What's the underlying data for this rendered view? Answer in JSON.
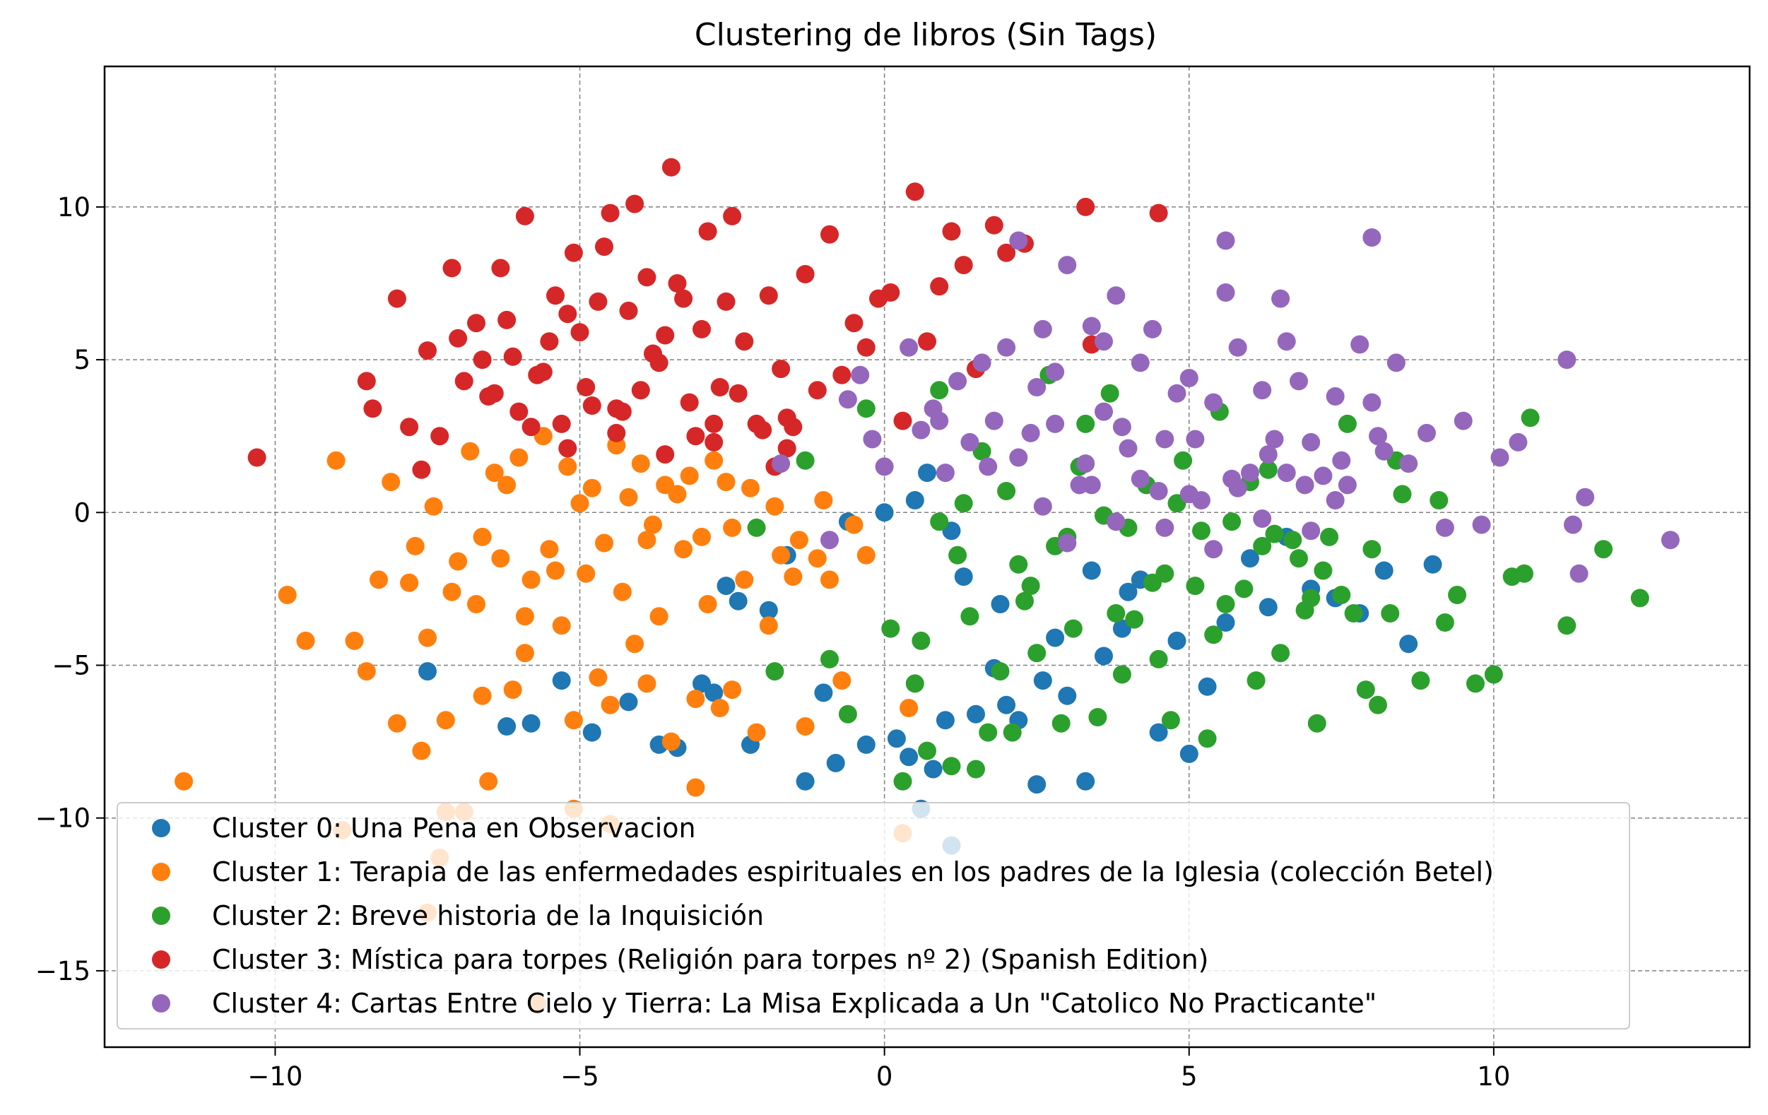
{
  "chart_data": {
    "type": "scatter",
    "title": "Clustering de libros (Sin Tags)",
    "xlabel": "",
    "ylabel": "",
    "xlim": [
      -12.8,
      14.2
    ],
    "ylim": [
      -17.5,
      14.6
    ],
    "xticks": [
      -10,
      -5,
      0,
      5,
      10
    ],
    "yticks": [
      -15,
      -10,
      -5,
      0,
      5,
      10
    ],
    "x_tick_labels": [
      "−10",
      "−5",
      "0",
      "5",
      "10"
    ],
    "y_tick_labels": [
      "−15",
      "−10",
      "−5",
      "0",
      "5",
      "10"
    ],
    "grid": true,
    "legend_position": "lower-left",
    "series": [
      {
        "name": "Cluster 0: Una Pena en Observacion",
        "color": "#1f77b4",
        "x": [
          -7.5,
          -6.2,
          -5.8,
          -5.3,
          -4.8,
          -4.2,
          -3.7,
          -3.4,
          -3.0,
          -2.8,
          -2.6,
          -2.2,
          -1.9,
          -1.6,
          -1.3,
          -1.0,
          -0.8,
          -0.6,
          -0.3,
          0.0,
          0.2,
          0.4,
          0.6,
          0.8,
          1.0,
          1.1,
          1.3,
          1.5,
          1.8,
          2.0,
          2.2,
          2.5,
          2.8,
          3.0,
          3.3,
          3.6,
          3.9,
          4.2,
          4.5,
          4.8,
          5.0,
          5.3,
          5.6,
          6.0,
          6.3,
          6.6,
          7.0,
          7.4,
          7.8,
          8.2,
          8.6,
          9.0,
          0.5,
          1.1,
          -2.4,
          2.6,
          3.4,
          4.0,
          0.7,
          1.9
        ],
        "y": [
          -5.2,
          -7.0,
          -6.9,
          -5.5,
          -7.2,
          -6.2,
          -7.6,
          -7.7,
          -5.6,
          -5.9,
          -2.4,
          -7.6,
          -3.2,
          -1.4,
          -8.8,
          -5.9,
          -8.2,
          -0.3,
          -7.6,
          0.0,
          -7.4,
          -8.0,
          -9.7,
          -8.4,
          -6.8,
          -10.9,
          -2.1,
          -6.6,
          -5.1,
          -6.3,
          -6.8,
          -8.9,
          -4.1,
          -6.0,
          -8.8,
          -4.7,
          -3.8,
          -2.2,
          -7.2,
          -4.2,
          -7.9,
          -5.7,
          -3.6,
          -1.5,
          -3.1,
          -0.8,
          -2.5,
          -2.8,
          -3.3,
          -1.9,
          -4.3,
          -1.7,
          0.4,
          -0.6,
          -2.9,
          -5.5,
          -1.9,
          -2.6,
          1.3,
          -3.0
        ]
      },
      {
        "name": "Cluster 1: Terapia de las enfermedades espirituales en los padres de la Iglesia (colección Betel)",
        "color": "#ff7f0e",
        "x": [
          -11.5,
          -9.8,
          -9.5,
          -9.0,
          -8.7,
          -8.5,
          -8.3,
          -8.0,
          -7.8,
          -7.5,
          -7.3,
          -7.1,
          -6.9,
          -6.7,
          -6.5,
          -6.3,
          -6.1,
          -5.9,
          -5.7,
          -5.5,
          -5.3,
          -5.1,
          -4.9,
          -4.7,
          -4.5,
          -4.3,
          -4.1,
          -3.9,
          -3.7,
          -3.5,
          -3.3,
          -3.1,
          -2.9,
          -2.7,
          -2.5,
          -2.3,
          -2.1,
          -1.9,
          -1.7,
          -1.5,
          -1.3,
          -1.1,
          -0.9,
          -0.7,
          -0.5,
          -0.3,
          0.3,
          -8.1,
          -7.7,
          -7.4,
          -7.0,
          -6.6,
          -6.2,
          -5.8,
          -5.4,
          -5.0,
          -4.6,
          -4.2,
          -3.8,
          -3.4,
          -3.0,
          -2.6,
          -2.2,
          -1.8,
          -1.4,
          -1.0,
          -6.8,
          -6.4,
          -6.0,
          -5.6,
          -5.2,
          -4.8,
          -4.4,
          -4.0,
          -3.6,
          -3.2,
          -2.8,
          -7.6,
          -7.2,
          -6.6,
          -5.9,
          -5.1,
          -4.5,
          -3.9,
          -3.1,
          -2.5,
          0.4,
          -7.5,
          -7.2,
          -8.9
        ],
        "y": [
          -8.8,
          -2.7,
          -4.2,
          1.7,
          -4.2,
          -5.2,
          -2.2,
          -6.9,
          -2.3,
          -4.1,
          -11.3,
          -2.6,
          -9.8,
          -3.0,
          -8.8,
          -1.5,
          -5.8,
          -3.4,
          -16.1,
          -1.2,
          -3.7,
          -9.7,
          -2.0,
          -5.4,
          -10.2,
          -2.6,
          -4.3,
          -0.9,
          -3.4,
          -7.5,
          -1.2,
          -9.0,
          -3.0,
          -6.4,
          -0.5,
          -2.2,
          -7.2,
          -3.7,
          -1.4,
          -2.1,
          -7.0,
          -1.5,
          -2.2,
          -5.5,
          -0.4,
          -1.4,
          -10.5,
          1.0,
          -1.1,
          0.2,
          -1.6,
          -0.8,
          0.9,
          -2.2,
          -1.9,
          0.3,
          -1.0,
          0.5,
          -0.4,
          0.6,
          -0.8,
          1.0,
          0.8,
          0.2,
          -0.9,
          0.4,
          2.0,
          1.3,
          1.8,
          2.5,
          1.5,
          0.8,
          2.2,
          1.6,
          0.9,
          1.2,
          1.7,
          -7.8,
          -9.8,
          -6.0,
          -4.6,
          -6.8,
          -6.3,
          -5.6,
          -6.1,
          -5.8,
          -6.4,
          -13.1,
          -6.8,
          -10.4
        ]
      },
      {
        "name": "Cluster 2: Breve historia de la Inquisición",
        "color": "#2ca02c",
        "x": [
          -2.1,
          -1.8,
          -1.3,
          -0.9,
          -0.6,
          -0.3,
          0.1,
          0.3,
          0.5,
          0.7,
          0.9,
          1.1,
          1.3,
          1.5,
          1.7,
          1.9,
          2.1,
          2.3,
          2.5,
          2.7,
          2.9,
          3.1,
          3.3,
          3.5,
          3.7,
          3.9,
          4.1,
          4.3,
          4.5,
          4.7,
          4.9,
          5.1,
          5.3,
          5.5,
          5.7,
          5.9,
          6.1,
          6.3,
          6.5,
          6.7,
          6.9,
          7.1,
          7.3,
          7.5,
          7.7,
          7.9,
          8.1,
          8.3,
          8.5,
          8.8,
          9.1,
          9.4,
          9.7,
          10.0,
          10.3,
          10.6,
          11.2,
          11.8,
          12.4,
          1.2,
          2.0,
          2.8,
          3.6,
          4.4,
          5.2,
          6.0,
          6.8,
          7.6,
          8.4,
          9.2,
          10.5,
          0.9,
          1.6,
          2.4,
          3.2,
          4.0,
          4.8,
          5.6,
          6.4,
          7.2,
          0.6,
          1.4,
          2.2,
          3.0,
          3.8,
          4.6,
          5.4,
          6.2,
          7.0,
          8.0
        ],
        "y": [
          -0.5,
          -5.2,
          1.7,
          -4.8,
          -6.6,
          3.4,
          -3.8,
          -8.8,
          -5.6,
          -7.8,
          4.0,
          -8.3,
          0.3,
          -8.4,
          -7.2,
          -5.2,
          -7.2,
          -2.9,
          -4.6,
          4.5,
          -6.9,
          -3.8,
          2.9,
          -6.7,
          3.9,
          -5.3,
          -3.5,
          0.9,
          -4.8,
          -6.8,
          1.7,
          -2.4,
          -7.4,
          3.3,
          -0.3,
          -2.5,
          -5.5,
          1.4,
          -4.6,
          -0.9,
          -3.2,
          -6.9,
          -0.8,
          -2.7,
          -3.3,
          -5.8,
          -6.3,
          -3.3,
          0.6,
          -5.5,
          0.4,
          -2.7,
          -5.6,
          -5.3,
          -2.1,
          3.1,
          -3.7,
          -1.2,
          -2.8,
          -1.4,
          0.7,
          -1.1,
          -0.1,
          -2.3,
          -0.6,
          1.0,
          -1.5,
          2.9,
          1.7,
          -3.6,
          -2.0,
          -0.3,
          2.0,
          -2.4,
          1.5,
          -0.5,
          0.3,
          -3.0,
          -0.7,
          -1.9,
          -4.2,
          -3.4,
          -1.7,
          -0.8,
          -3.3,
          -2.0,
          -4.0,
          -1.1,
          -2.8,
          -1.2
        ]
      },
      {
        "name": "Cluster 3: Mística para torpes (Religión para torpes nº 2) (Spanish Edition)",
        "color": "#d62728",
        "x": [
          -10.3,
          -8.5,
          -8.4,
          -8.0,
          -7.8,
          -7.5,
          -7.3,
          -7.1,
          -6.9,
          -6.7,
          -6.5,
          -6.3,
          -6.1,
          -5.9,
          -5.7,
          -5.5,
          -5.3,
          -5.1,
          -4.9,
          -4.7,
          -4.5,
          -4.3,
          -4.1,
          -3.9,
          -3.7,
          -3.5,
          -3.3,
          -3.1,
          -2.9,
          -2.7,
          -2.5,
          -2.3,
          -2.1,
          -1.9,
          -1.7,
          -1.5,
          -1.3,
          -1.1,
          -0.9,
          -0.7,
          -0.5,
          -0.3,
          -0.1,
          0.1,
          0.3,
          0.5,
          0.7,
          0.9,
          1.1,
          1.3,
          1.5,
          1.8,
          2.0,
          2.3,
          3.3,
          3.4,
          4.5,
          -6.0,
          -5.6,
          -5.2,
          -4.8,
          -4.4,
          -4.0,
          -3.6,
          -3.2,
          -2.8,
          -2.4,
          -2.0,
          -1.6,
          -6.6,
          -6.2,
          -5.8,
          -5.4,
          -5.0,
          -4.6,
          -4.2,
          -3.8,
          -3.4,
          -3.0,
          -2.6,
          -7.6,
          -7.0,
          -6.4,
          -5.2,
          -4.4,
          -3.6,
          -2.8,
          -1.6,
          -1.8
        ],
        "y": [
          1.8,
          4.3,
          3.4,
          7.0,
          2.8,
          5.3,
          2.5,
          8.0,
          4.3,
          6.2,
          3.8,
          8.0,
          5.1,
          9.7,
          4.5,
          5.6,
          2.9,
          8.5,
          4.1,
          6.9,
          9.8,
          3.3,
          10.1,
          7.7,
          4.9,
          11.3,
          7.0,
          2.5,
          9.2,
          4.1,
          9.7,
          5.6,
          2.9,
          7.1,
          4.7,
          2.8,
          7.8,
          4.0,
          9.1,
          4.5,
          6.2,
          5.4,
          7.0,
          7.2,
          3.0,
          10.5,
          5.6,
          7.4,
          9.2,
          8.1,
          4.7,
          9.4,
          8.5,
          8.8,
          10.0,
          5.5,
          9.8,
          3.3,
          4.6,
          2.1,
          3.5,
          2.6,
          4.0,
          1.9,
          3.6,
          2.3,
          3.9,
          2.7,
          3.1,
          5.0,
          6.3,
          2.8,
          7.1,
          5.9,
          8.7,
          6.6,
          5.2,
          7.5,
          6.0,
          6.9,
          1.4,
          5.7,
          3.9,
          6.5,
          3.4,
          5.8,
          2.9,
          2.1,
          1.5
        ]
      },
      {
        "name": "Cluster 4: Cartas Entre Cielo y Tierra: La Misa Explicada a Un \"Catolico No Practicante\"",
        "color": "#9467bd",
        "x": [
          -1.7,
          -0.9,
          -0.6,
          -0.4,
          -0.2,
          0.0,
          0.4,
          0.6,
          0.8,
          1.0,
          1.2,
          1.4,
          1.6,
          1.8,
          2.0,
          2.2,
          2.4,
          2.6,
          2.8,
          3.0,
          3.2,
          3.4,
          3.6,
          3.8,
          4.0,
          4.2,
          4.4,
          4.6,
          4.8,
          5.0,
          5.2,
          5.4,
          5.6,
          5.8,
          6.0,
          6.2,
          6.4,
          6.6,
          6.8,
          7.0,
          7.2,
          7.4,
          7.6,
          7.8,
          8.0,
          8.2,
          8.4,
          8.6,
          8.9,
          9.2,
          9.5,
          9.8,
          10.1,
          10.4,
          11.2,
          11.3,
          11.4,
          11.5,
          12.9,
          2.6,
          3.0,
          3.4,
          3.8,
          4.2,
          4.6,
          5.0,
          5.4,
          5.8,
          6.2,
          6.6,
          7.0,
          7.4,
          2.2,
          2.8,
          3.3,
          3.9,
          4.5,
          5.1,
          5.7,
          6.3,
          6.9,
          7.5,
          8.1,
          0.9,
          1.7,
          2.5,
          3.6,
          5.6,
          6.5,
          8.0
        ],
        "y": [
          1.6,
          -0.9,
          3.7,
          4.5,
          2.4,
          1.5,
          5.4,
          2.7,
          3.4,
          1.3,
          4.3,
          2.3,
          4.9,
          3.0,
          5.4,
          8.9,
          2.6,
          6.0,
          4.6,
          8.1,
          0.9,
          6.1,
          5.6,
          7.1,
          2.1,
          4.9,
          6.0,
          2.4,
          3.9,
          4.4,
          0.4,
          3.6,
          8.9,
          5.4,
          1.3,
          4.0,
          2.4,
          5.6,
          4.3,
          2.3,
          1.2,
          3.8,
          0.9,
          5.5,
          3.6,
          2.0,
          4.9,
          1.6,
          2.6,
          -0.5,
          3.0,
          -0.4,
          1.8,
          2.3,
          5.0,
          -0.4,
          -2.0,
          0.5,
          -0.9,
          0.2,
          -1.0,
          0.9,
          -0.3,
          1.1,
          -0.5,
          0.6,
          -1.2,
          0.8,
          -0.2,
          1.3,
          -0.6,
          0.4,
          1.8,
          2.9,
          1.6,
          2.8,
          0.7,
          2.4,
          1.1,
          1.9,
          0.9,
          1.7,
          2.5,
          3.0,
          1.5,
          4.1,
          3.3,
          7.2,
          7.0,
          9.0
        ]
      }
    ]
  }
}
